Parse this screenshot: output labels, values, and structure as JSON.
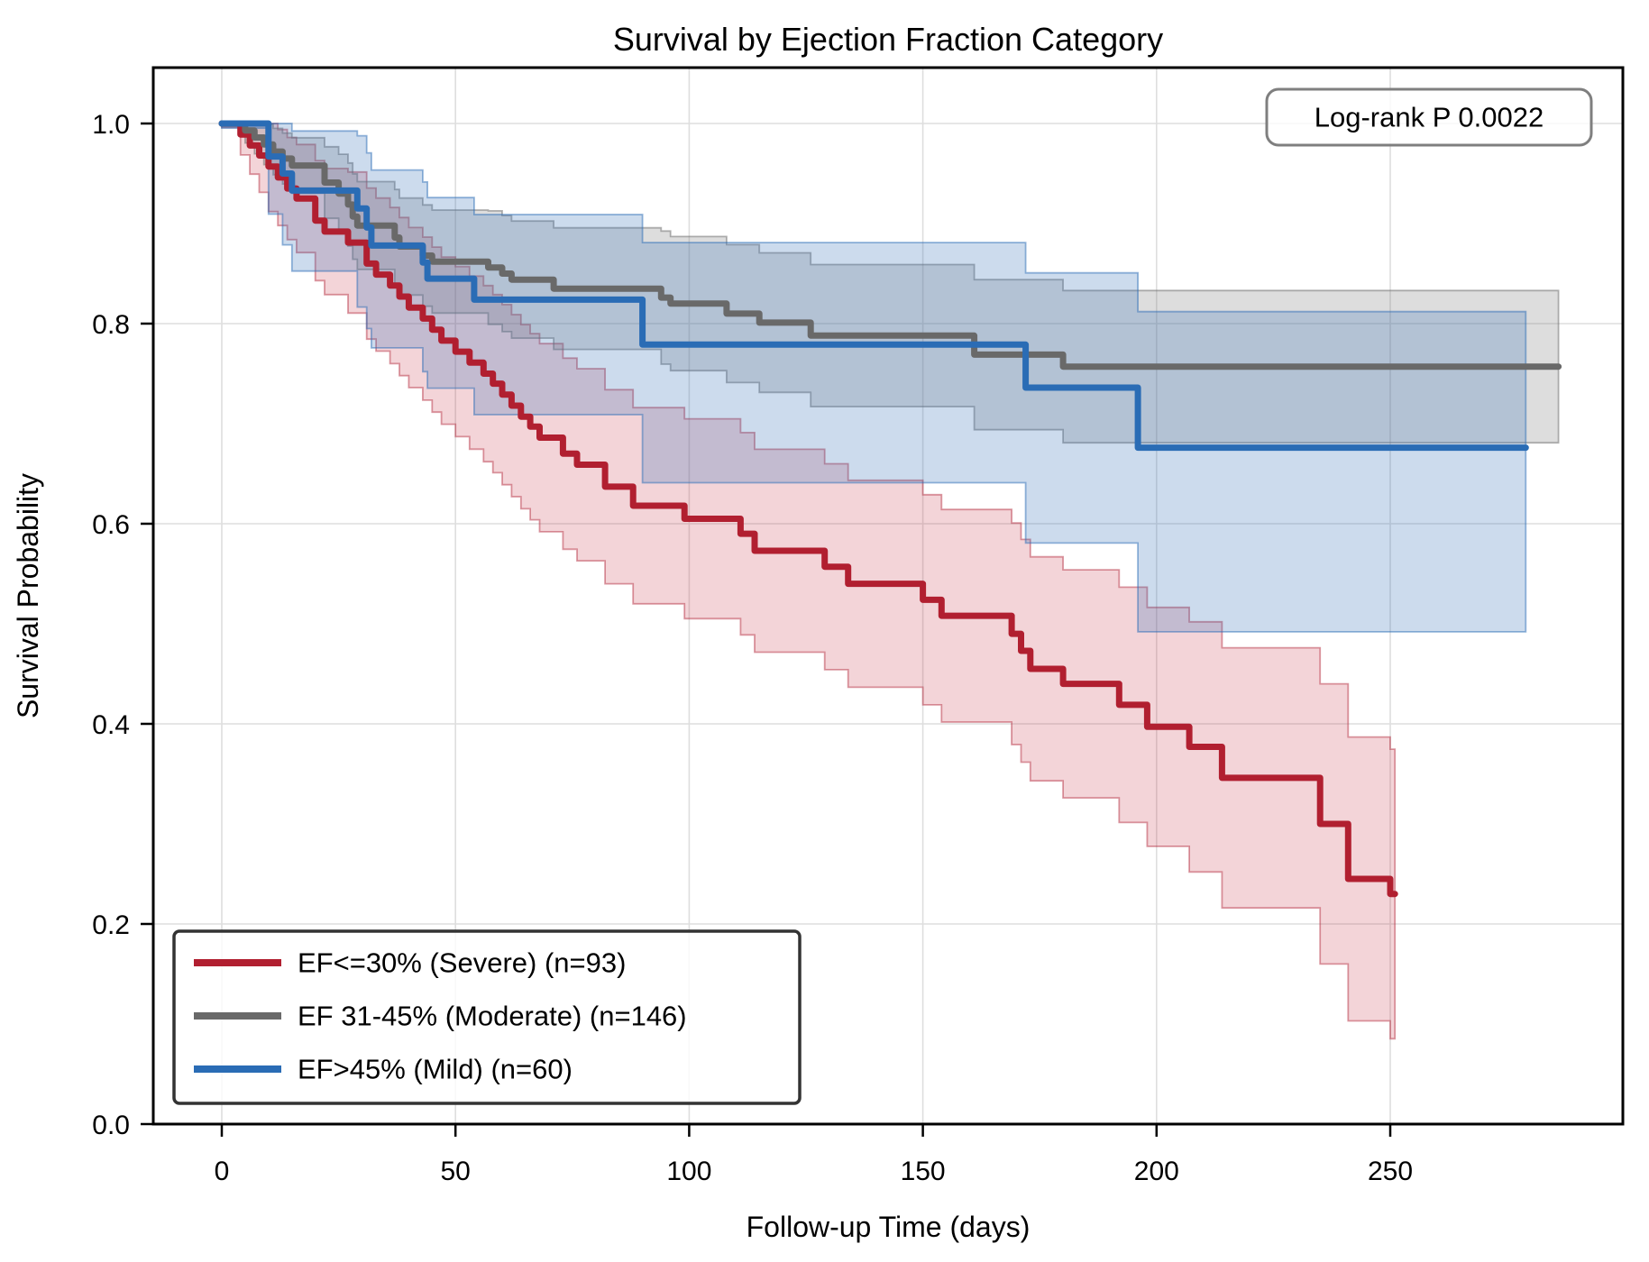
{
  "title": "Survival by Ejection Fraction Category",
  "annotation": {
    "label": "Log-rank P 0.0022"
  },
  "axes": {
    "x": {
      "label": "Follow-up Time (days)",
      "ticks": [
        "0",
        "50",
        "100",
        "150",
        "200",
        "250"
      ]
    },
    "y": {
      "label": "Survival Probability",
      "ticks": [
        "0.0",
        "0.2",
        "0.4",
        "0.6",
        "0.8",
        "1.0"
      ]
    }
  },
  "legend": {
    "items": [
      {
        "label": "EF<=30% (Severe) (n=93)",
        "color": "#b11f30"
      },
      {
        "label": "EF 31-45% (Moderate) (n=146)",
        "color": "#696969"
      },
      {
        "label": "EF>45% (Mild) (n=60)",
        "color": "#2a6cb5"
      }
    ]
  },
  "chart_data": {
    "type": "line",
    "subtype": "kaplan-meier-step",
    "title": "Survival by Ejection Fraction Category",
    "xlabel": "Follow-up Time (days)",
    "ylabel": "Survival Probability",
    "xlim": [
      -15,
      300
    ],
    "ylim": [
      0.0,
      1.056
    ],
    "xticks": [
      0,
      50,
      100,
      150,
      200,
      250
    ],
    "yticks": [
      0.0,
      0.2,
      0.4,
      0.6,
      0.8,
      1.0
    ],
    "grid": true,
    "legend_position": "lower left",
    "annotation": "Log-rank P 0.0022",
    "series": [
      {
        "name": "EF<=30% (Severe) (n=93)",
        "n": 93,
        "color": "#b11f30",
        "band_fill": "rgba(197,42,58,0.20)",
        "band_edge": "rgba(176,30,50,0.45)",
        "t": [
          0,
          4,
          6,
          8,
          10,
          12,
          14,
          16,
          20,
          22,
          27,
          31,
          33,
          36,
          38,
          40,
          43,
          45,
          47,
          50,
          53,
          56,
          58,
          60,
          62,
          64,
          66,
          68,
          73,
          76,
          82,
          88,
          99,
          111,
          114,
          129,
          134,
          150,
          154,
          169,
          171,
          173,
          180,
          192,
          198,
          207,
          214,
          235,
          241,
          250
        ],
        "s": [
          1.0,
          0.989,
          0.978,
          0.968,
          0.957,
          0.946,
          0.935,
          0.925,
          0.903,
          0.892,
          0.881,
          0.86,
          0.849,
          0.838,
          0.827,
          0.816,
          0.805,
          0.794,
          0.783,
          0.772,
          0.761,
          0.75,
          0.74,
          0.729,
          0.718,
          0.707,
          0.697,
          0.686,
          0.67,
          0.659,
          0.637,
          0.618,
          0.605,
          0.59,
          0.573,
          0.557,
          0.54,
          0.524,
          0.508,
          0.49,
          0.473,
          0.455,
          0.44,
          0.419,
          0.397,
          0.377,
          0.346,
          0.3,
          0.245,
          0.23
        ],
        "end_t": 251,
        "ci": {
          "t": [
            0,
            10,
            30,
            50,
            70,
            100,
            150,
            200,
            214,
            235,
            251
          ],
          "h": [
            0.004,
            0.045,
            0.075,
            0.085,
            0.095,
            0.1,
            0.105,
            0.12,
            0.13,
            0.14,
            0.145
          ],
          "up_skew": 1.0,
          "low_skew": 1.0
        }
      },
      {
        "name": "EF 31-45% (Moderate) (n=146)",
        "n": 146,
        "color": "#696969",
        "band_fill": "rgba(120,120,120,0.25)",
        "band_edge": "rgba(105,105,105,0.50)",
        "t": [
          0,
          5,
          7,
          9,
          11,
          13,
          15,
          22,
          25,
          27,
          28,
          29,
          37,
          38,
          43,
          45,
          57,
          60,
          62,
          71,
          94,
          96,
          108,
          115,
          126,
          161,
          180
        ],
        "s": [
          1.0,
          0.993,
          0.986,
          0.979,
          0.972,
          0.965,
          0.958,
          0.941,
          0.93,
          0.919,
          0.907,
          0.898,
          0.886,
          0.877,
          0.868,
          0.862,
          0.856,
          0.85,
          0.844,
          0.835,
          0.826,
          0.82,
          0.81,
          0.801,
          0.788,
          0.769,
          0.757
        ],
        "end_t": 286,
        "ci": {
          "t": [
            0,
            10,
            30,
            60,
            100,
            161,
            286
          ],
          "h": [
            0.003,
            0.022,
            0.045,
            0.058,
            0.068,
            0.075,
            0.082
          ],
          "up_skew": 1.0,
          "low_skew": 1.0
        }
      },
      {
        "name": "EF>45% (Mild) (n=60)",
        "n": 60,
        "color": "#2a6cb5",
        "band_fill": "rgba(59,115,186,0.26)",
        "band_edge": "rgba(42,108,181,0.50)",
        "t": [
          0,
          10,
          13,
          15,
          29,
          31,
          32,
          43,
          44,
          54,
          90,
          172,
          196
        ],
        "s": [
          1.0,
          0.967,
          0.95,
          0.933,
          0.915,
          0.896,
          0.878,
          0.861,
          0.845,
          0.824,
          0.779,
          0.736,
          0.676
        ],
        "end_t": 279,
        "ci": {
          "t": [
            0,
            10,
            15,
            33,
            54,
            90,
            172,
            196,
            279
          ],
          "h": [
            0.004,
            0.05,
            0.07,
            0.09,
            0.1,
            0.12,
            0.135,
            0.16,
            0.16
          ],
          "up_skew": 0.85,
          "low_skew": 1.15
        }
      }
    ]
  }
}
